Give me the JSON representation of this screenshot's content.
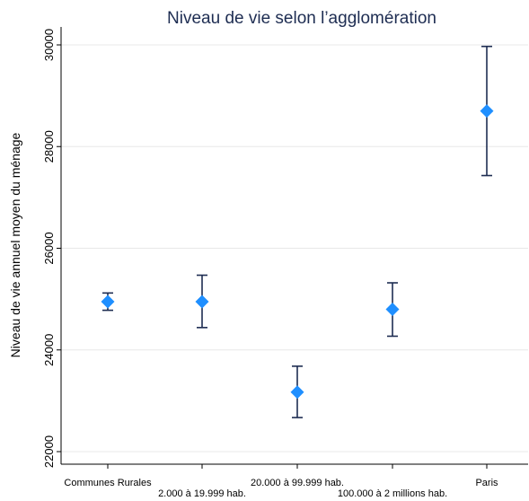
{
  "chart_data": {
    "type": "scatter",
    "title": "Niveau de vie selon l’agglomération",
    "ylabel": "Niveau de vie annuel moyen du ménage",
    "xlabel": "",
    "ylim": [
      21800,
      30500
    ],
    "yticks": [
      22000,
      24000,
      26000,
      28000,
      30000
    ],
    "grid": true,
    "categories": [
      "Communes Rurales",
      "2.000 à 19.999 hab.",
      "20.000 à 99.999 hab.",
      "100.000 à 2 millions hab.",
      "Paris"
    ],
    "values": [
      24950,
      24950,
      23170,
      24800,
      28700
    ],
    "lower": [
      24780,
      24440,
      22670,
      24270,
      27430
    ],
    "upper": [
      25120,
      25470,
      23680,
      25320,
      29970
    ],
    "colors": {
      "marker": "#1f8fff",
      "errorbar": "#1e2d52",
      "title": "#1e2d52",
      "grid": "#e8e8e8"
    }
  }
}
